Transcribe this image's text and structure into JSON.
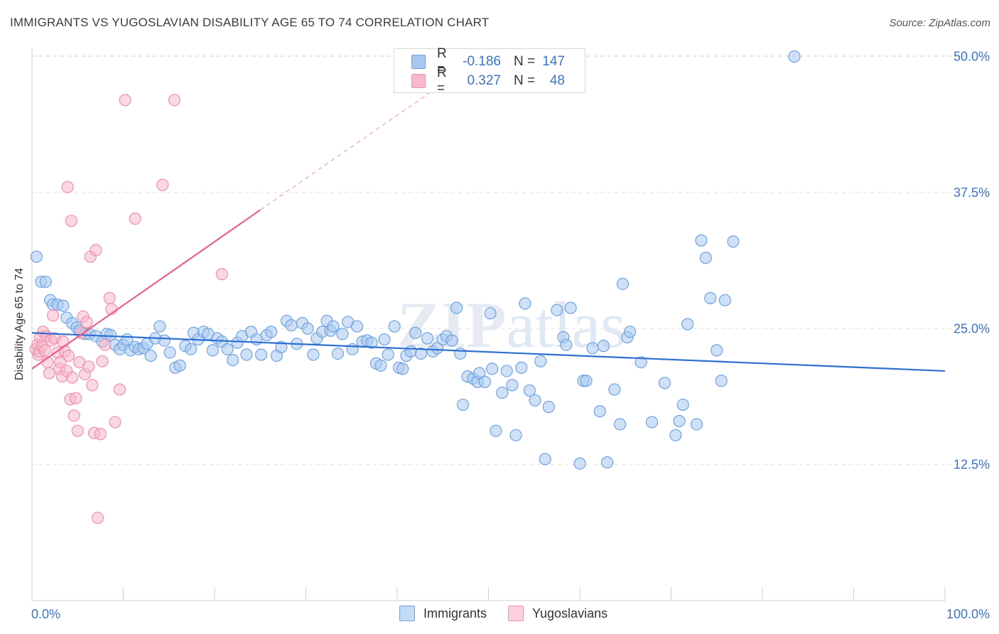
{
  "title": "IMMIGRANTS VS YUGOSLAVIAN DISABILITY AGE 65 TO 74 CORRELATION CHART",
  "source": "Source: ZipAtlas.com",
  "watermark": "ZIPatlas",
  "legend_top": [
    {
      "r_label": "R =",
      "r_value": "-0.186",
      "n_label": "N =",
      "n_value": "147",
      "color": "#a9c8f0"
    },
    {
      "r_label": "R =",
      "r_value": "0.327",
      "n_label": "N =",
      "n_value": "48",
      "color": "#f6b8cb"
    }
  ],
  "legend_bottom": [
    {
      "label": "Immigrants",
      "color": "#a9c8f0"
    },
    {
      "label": "Yugoslavians",
      "color": "#f6b8cb"
    }
  ],
  "chart_data": {
    "type": "scatter",
    "title": "IMMIGRANTS VS YUGOSLAVIAN DISABILITY AGE 65 TO 74 CORRELATION CHART",
    "xlabel": "",
    "ylabel": "Disability Age 65 to 74",
    "xlim": [
      0,
      100
    ],
    "ylim": [
      0,
      51
    ],
    "x_tick_labels": [
      "0.0%",
      "100.0%"
    ],
    "y_ticks": [
      12.5,
      25.0,
      37.5,
      50.0
    ],
    "y_tick_labels": [
      "12.5%",
      "25.0%",
      "37.5%",
      "50.0%"
    ],
    "grid": true,
    "series": [
      {
        "name": "Immigrants",
        "color": "#6fa3e0",
        "fill": "#a9c8f0",
        "trend": {
          "x": [
            0,
            100
          ],
          "y": [
            24.6,
            21.1
          ],
          "color": "#2f6fd0"
        },
        "points": [
          [
            0.5,
            31.6
          ],
          [
            1,
            29.3
          ],
          [
            1.5,
            29.3
          ],
          [
            2,
            27.6
          ],
          [
            2.3,
            27.2
          ],
          [
            2.8,
            27.2
          ],
          [
            3.4,
            27.1
          ],
          [
            3.8,
            26
          ],
          [
            4.4,
            25.5
          ],
          [
            4.9,
            25.1
          ],
          [
            5.2,
            24.8
          ],
          [
            5.8,
            24.5
          ],
          [
            6.3,
            24.5
          ],
          [
            7,
            24.3
          ],
          [
            7.7,
            23.8
          ],
          [
            8.2,
            24.5
          ],
          [
            8.6,
            24.4
          ],
          [
            9.1,
            23.5
          ],
          [
            9.6,
            23.1
          ],
          [
            10,
            23.5
          ],
          [
            10.4,
            24
          ],
          [
            10.8,
            23
          ],
          [
            11.3,
            23.3
          ],
          [
            11.7,
            23.1
          ],
          [
            12.2,
            23.2
          ],
          [
            12.6,
            23.6
          ],
          [
            13,
            22.5
          ],
          [
            13.5,
            24.1
          ],
          [
            14,
            25.2
          ],
          [
            14.5,
            23.9
          ],
          [
            15.1,
            22.8
          ],
          [
            15.7,
            21.4
          ],
          [
            16.2,
            21.6
          ],
          [
            16.8,
            23.4
          ],
          [
            17.4,
            23.1
          ],
          [
            17.7,
            24.6
          ],
          [
            18.2,
            24
          ],
          [
            18.8,
            24.7
          ],
          [
            19.3,
            24.5
          ],
          [
            19.8,
            23
          ],
          [
            20.3,
            24.1
          ],
          [
            20.8,
            23.8
          ],
          [
            21.4,
            23.1
          ],
          [
            22,
            22.1
          ],
          [
            22.5,
            23.7
          ],
          [
            23,
            24.3
          ],
          [
            23.5,
            22.6
          ],
          [
            24,
            24.7
          ],
          [
            24.6,
            24
          ],
          [
            25.1,
            22.6
          ],
          [
            25.7,
            24.4
          ],
          [
            26.2,
            24.7
          ],
          [
            26.8,
            22.5
          ],
          [
            27.3,
            23.3
          ],
          [
            27.9,
            25.7
          ],
          [
            28.4,
            25.3
          ],
          [
            29,
            23.6
          ],
          [
            29.6,
            25.5
          ],
          [
            30.2,
            25
          ],
          [
            30.8,
            22.6
          ],
          [
            31.2,
            24.1
          ],
          [
            31.8,
            24.7
          ],
          [
            32.3,
            25.7
          ],
          [
            32.7,
            24.8
          ],
          [
            33,
            25.2
          ],
          [
            33.5,
            22.7
          ],
          [
            34,
            24.5
          ],
          [
            34.6,
            25.6
          ],
          [
            35.1,
            23.1
          ],
          [
            35.6,
            25.2
          ],
          [
            36.2,
            23.8
          ],
          [
            36.7,
            23.9
          ],
          [
            37.2,
            23.7
          ],
          [
            37.7,
            21.8
          ],
          [
            38.2,
            21.6
          ],
          [
            38.6,
            24
          ],
          [
            39,
            22.6
          ],
          [
            39.7,
            25.2
          ],
          [
            40.2,
            21.4
          ],
          [
            40.6,
            21.3
          ],
          [
            41,
            22.5
          ],
          [
            41.5,
            22.9
          ],
          [
            42,
            24.6
          ],
          [
            42.6,
            22.7
          ],
          [
            43.3,
            24.1
          ],
          [
            43.9,
            22.9
          ],
          [
            44.4,
            23.2
          ],
          [
            45,
            24
          ],
          [
            45.4,
            24.3
          ],
          [
            46,
            23.9
          ],
          [
            46.5,
            26.9
          ],
          [
            46.9,
            22.7
          ],
          [
            47.2,
            18
          ],
          [
            47.7,
            20.6
          ],
          [
            48.3,
            20.4
          ],
          [
            48.8,
            20.1
          ],
          [
            49,
            20.9
          ],
          [
            49.6,
            20.1
          ],
          [
            50.2,
            26.4
          ],
          [
            50.4,
            21.3
          ],
          [
            50.8,
            15.6
          ],
          [
            51.5,
            19.1
          ],
          [
            52,
            21.1
          ],
          [
            52.6,
            19.8
          ],
          [
            53,
            15.2
          ],
          [
            53.6,
            21.4
          ],
          [
            54,
            27.3
          ],
          [
            54.5,
            19.3
          ],
          [
            55.1,
            18.4
          ],
          [
            55.7,
            22
          ],
          [
            56.2,
            13
          ],
          [
            56.6,
            17.8
          ],
          [
            57.5,
            26.7
          ],
          [
            58.2,
            24.2
          ],
          [
            58.5,
            23.5
          ],
          [
            59,
            26.9
          ],
          [
            60,
            12.6
          ],
          [
            60.4,
            20.2
          ],
          [
            60.7,
            20.2
          ],
          [
            61.4,
            23.2
          ],
          [
            62.2,
            17.4
          ],
          [
            62.6,
            23.4
          ],
          [
            63,
            12.7
          ],
          [
            63.8,
            19.4
          ],
          [
            64.4,
            16.2
          ],
          [
            64.7,
            29.1
          ],
          [
            65.2,
            24.2
          ],
          [
            65.5,
            24.7
          ],
          [
            66.7,
            21.9
          ],
          [
            67.9,
            16.4
          ],
          [
            69.3,
            20
          ],
          [
            70.5,
            15.2
          ],
          [
            70.9,
            16.5
          ],
          [
            71.3,
            18
          ],
          [
            71.8,
            25.4
          ],
          [
            72.8,
            16.2
          ],
          [
            73.3,
            33.1
          ],
          [
            73.8,
            31.5
          ],
          [
            74.3,
            27.8
          ],
          [
            75,
            23
          ],
          [
            75.5,
            20.2
          ],
          [
            75.9,
            27.6
          ],
          [
            76.8,
            33
          ],
          [
            83.5,
            50
          ]
        ]
      },
      {
        "name": "Yugoslavians",
        "color": "#ef91ad",
        "fill": "#f6b8cb",
        "trend": {
          "x": [
            0,
            25
          ],
          "y": [
            21.3,
            35.9
          ],
          "color": "#e8608b",
          "dashed_extension": {
            "x": [
              25,
              45
            ],
            "y": [
              35.9,
              47.5
            ],
            "color": "#f0a0b8"
          }
        },
        "points": [
          [
            0.4,
            23.1
          ],
          [
            0.6,
            23.5
          ],
          [
            0.7,
            22.6
          ],
          [
            0.8,
            22.9
          ],
          [
            0.9,
            24.2
          ],
          [
            1.1,
            23.4
          ],
          [
            1.2,
            24.7
          ],
          [
            1.4,
            23
          ],
          [
            1.6,
            24.3
          ],
          [
            1.7,
            21.9
          ],
          [
            1.9,
            20.9
          ],
          [
            2.1,
            23.9
          ],
          [
            2.3,
            26.2
          ],
          [
            2.5,
            24.1
          ],
          [
            2.8,
            22.8
          ],
          [
            3,
            21.3
          ],
          [
            3.1,
            21.9
          ],
          [
            3.3,
            20.6
          ],
          [
            3.4,
            23.8
          ],
          [
            3.6,
            22.9
          ],
          [
            3.8,
            21.1
          ],
          [
            3.9,
            38
          ],
          [
            4,
            22.5
          ],
          [
            4.2,
            18.5
          ],
          [
            4.3,
            34.9
          ],
          [
            4.4,
            20.5
          ],
          [
            4.6,
            17
          ],
          [
            4.8,
            18.6
          ],
          [
            5,
            15.6
          ],
          [
            5.2,
            21.9
          ],
          [
            5.4,
            24.6
          ],
          [
            5.6,
            26.1
          ],
          [
            5.8,
            20.8
          ],
          [
            6,
            25.6
          ],
          [
            6.2,
            21.5
          ],
          [
            6.4,
            31.6
          ],
          [
            6.6,
            19.8
          ],
          [
            6.8,
            15.4
          ],
          [
            7,
            32.2
          ],
          [
            7.2,
            7.6
          ],
          [
            7.5,
            15.3
          ],
          [
            7.7,
            22
          ],
          [
            8,
            23.5
          ],
          [
            8.5,
            27.8
          ],
          [
            8.7,
            26.8
          ],
          [
            9.1,
            16.4
          ],
          [
            9.6,
            19.4
          ],
          [
            10.2,
            46
          ],
          [
            11.3,
            35.1
          ],
          [
            14.3,
            38.2
          ],
          [
            15.6,
            46
          ],
          [
            20.8,
            30
          ]
        ]
      }
    ]
  }
}
